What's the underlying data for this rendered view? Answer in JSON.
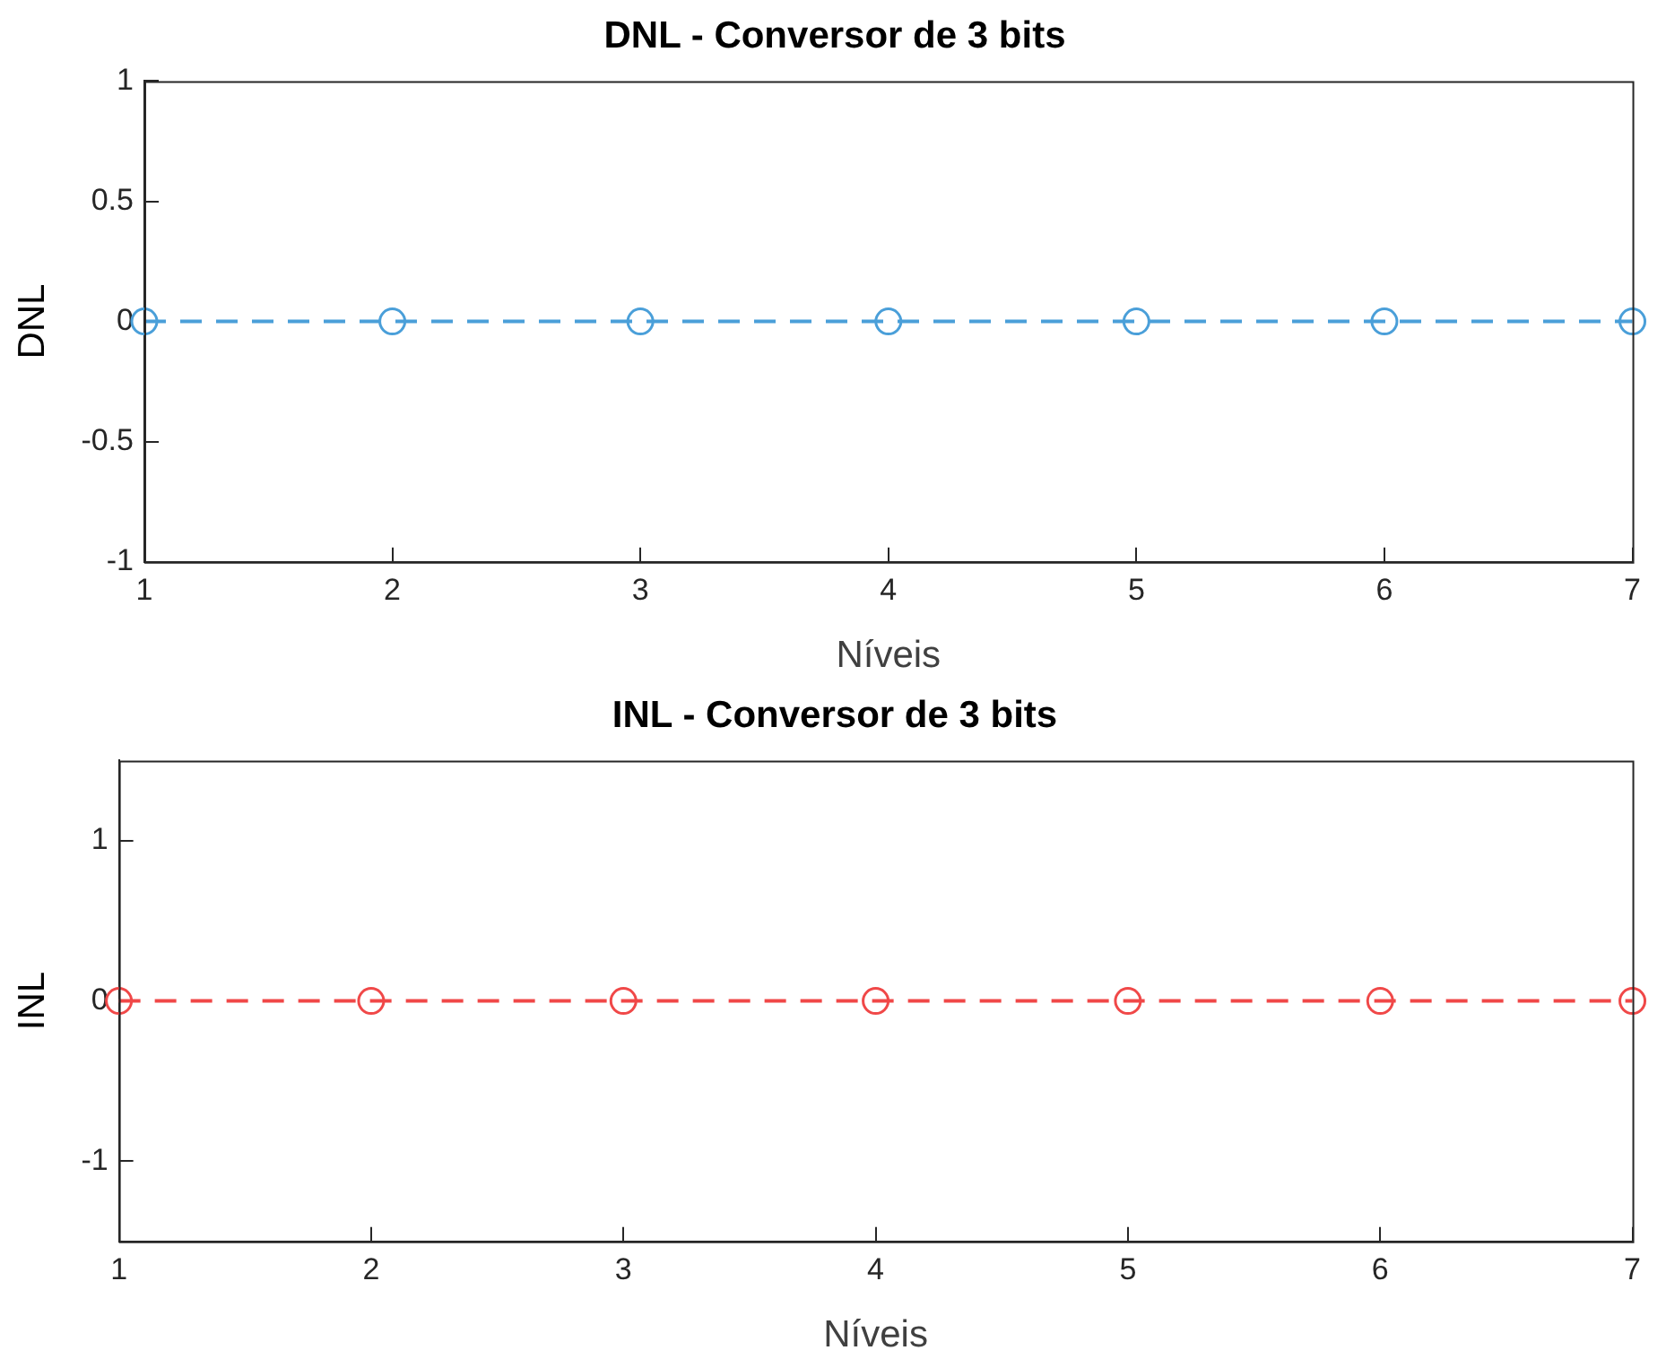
{
  "chart_data": [
    {
      "type": "line",
      "title": "DNL - Conversor de 3 bits",
      "xlabel": "Níveis",
      "ylabel": "DNL",
      "x": [
        1,
        2,
        3,
        4,
        5,
        6,
        7
      ],
      "series": [
        {
          "color": "#4a9fd9",
          "values": [
            0,
            0,
            0,
            0,
            0,
            0,
            0
          ]
        }
      ],
      "xlim": [
        1,
        7
      ],
      "xticks": [
        1,
        2,
        3,
        4,
        5,
        6,
        7
      ],
      "ylim": [
        -1,
        1
      ],
      "yticks": [
        -1,
        -0.5,
        0,
        0.5,
        1
      ],
      "marker": "circle",
      "line_style": "dashed"
    },
    {
      "type": "line",
      "title": "INL - Conversor de 3 bits",
      "xlabel": "Níveis",
      "ylabel": "INL",
      "x": [
        1,
        2,
        3,
        4,
        5,
        6,
        7
      ],
      "series": [
        {
          "color": "#f04848",
          "values": [
            0,
            0,
            0,
            0,
            0,
            0,
            0
          ]
        }
      ],
      "xlim": [
        1,
        7
      ],
      "xticks": [
        1,
        2,
        3,
        4,
        5,
        6,
        7
      ],
      "ylim": [
        -1.5,
        1.5
      ],
      "yticks": [
        -1,
        0,
        1
      ],
      "marker": "circle",
      "line_style": "dashed"
    }
  ]
}
